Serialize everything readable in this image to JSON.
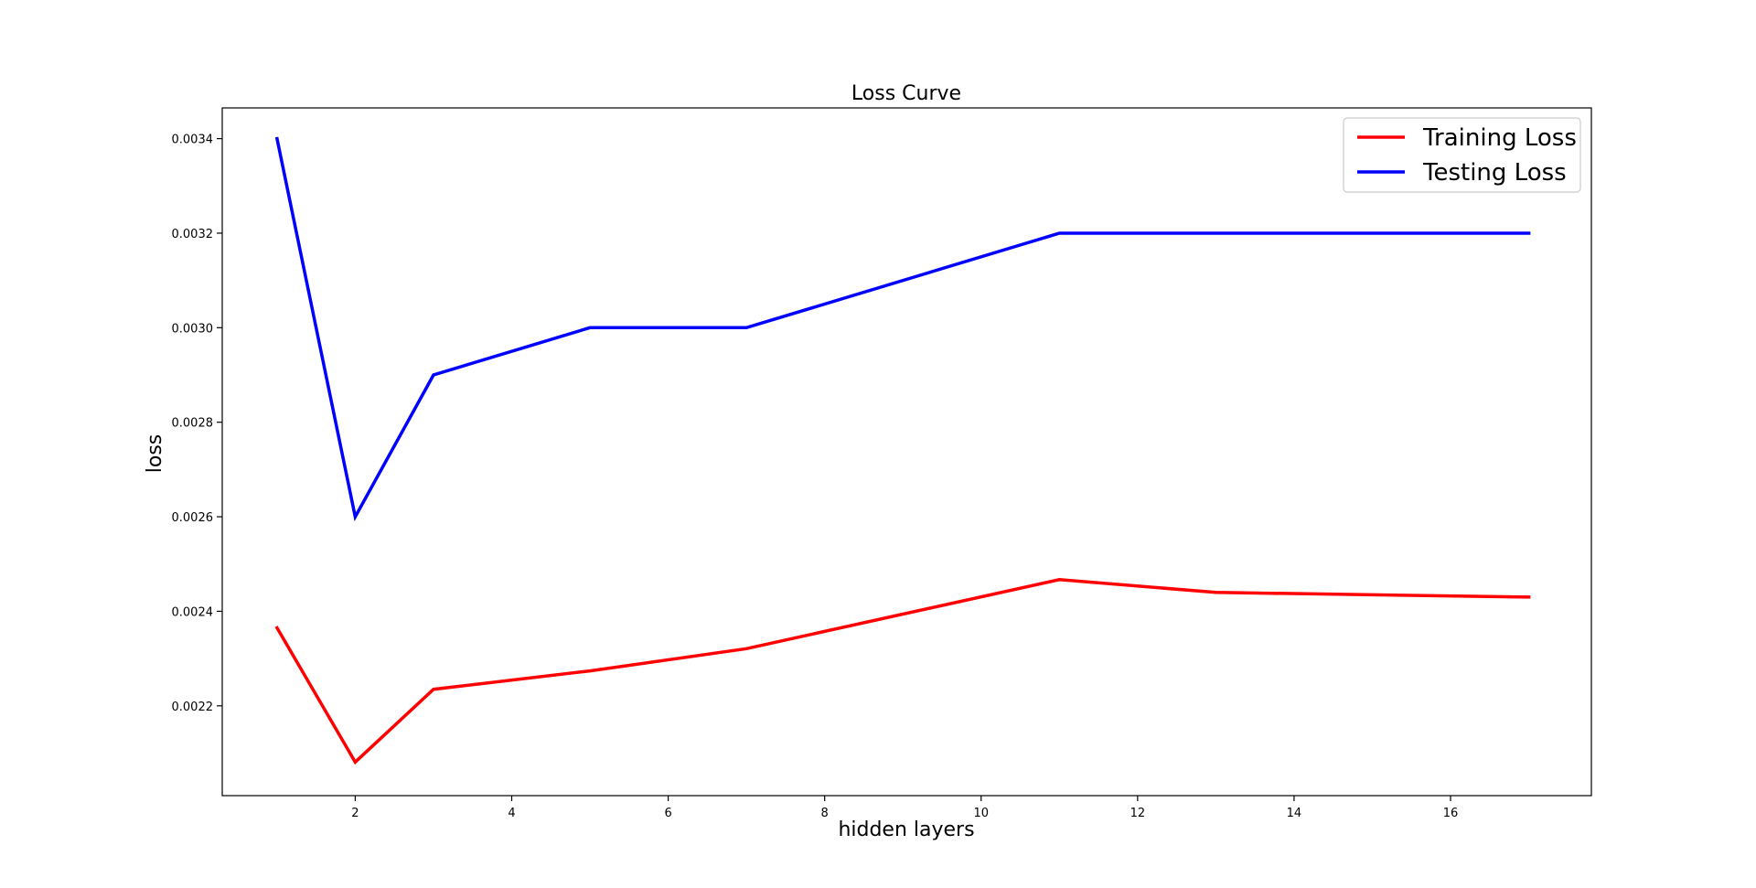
{
  "chart_data": {
    "type": "line",
    "title": "Loss Curve",
    "xlabel": "hidden layers",
    "ylabel": "loss",
    "xlim": [
      0.3,
      17.8
    ],
    "ylim": [
      0.00201,
      0.003465
    ],
    "xticks": [
      2,
      4,
      6,
      8,
      10,
      12,
      14,
      16
    ],
    "yticks": [
      0.0022,
      0.0024,
      0.0026,
      0.0028,
      0.003,
      0.0032,
      0.0034
    ],
    "ytick_labels": [
      "0.0022",
      "0.0024",
      "0.0026",
      "0.0028",
      "0.0030",
      "0.0032",
      "0.0034"
    ],
    "legend_position": "top-right",
    "grid": false,
    "x": [
      1,
      2,
      3,
      5,
      7,
      11,
      13,
      17
    ],
    "series": [
      {
        "name": "Training Loss",
        "color": "#ff0000",
        "values": [
          0.002365,
          0.002081,
          0.002235,
          0.002274,
          0.002321,
          0.002467,
          0.00244,
          0.00243
        ]
      },
      {
        "name": "Testing Loss",
        "color": "#0000ff",
        "values": [
          0.0034,
          0.0026,
          0.0029,
          0.003,
          0.003,
          0.0032,
          0.0032,
          0.0032
        ]
      }
    ]
  }
}
